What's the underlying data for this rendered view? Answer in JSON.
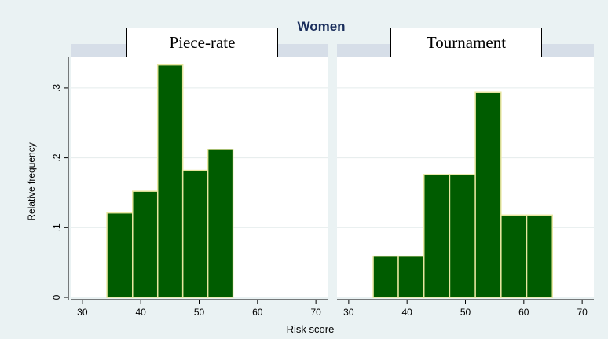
{
  "chart_data": {
    "type": "bar",
    "title": "Women",
    "xlabel": "Risk score",
    "ylabel": "Relative frequency",
    "xlim": [
      28,
      72
    ],
    "ylim": [
      0,
      0.345
    ],
    "x_ticks": [
      30,
      40,
      50,
      60,
      70
    ],
    "y_ticks": [
      0,
      0.1,
      0.2,
      0.3
    ],
    "y_tick_labels": [
      "0",
      ".1",
      ".2",
      ".3"
    ],
    "bar_color": "#005c00",
    "bar_edge_color": "#e8e6a0",
    "panels": [
      {
        "name": "Piece-rate",
        "bins": [
          {
            "x0": 34.2,
            "x1": 38.6,
            "value": 0.121
          },
          {
            "x0": 38.6,
            "x1": 42.9,
            "value": 0.152
          },
          {
            "x0": 42.9,
            "x1": 47.2,
            "value": 0.333
          },
          {
            "x0": 47.2,
            "x1": 51.5,
            "value": 0.182
          },
          {
            "x0": 51.5,
            "x1": 55.8,
            "value": 0.212
          }
        ]
      },
      {
        "name": "Tournament",
        "bins": [
          {
            "x0": 34.2,
            "x1": 38.5,
            "value": 0.059
          },
          {
            "x0": 38.5,
            "x1": 42.9,
            "value": 0.059
          },
          {
            "x0": 42.9,
            "x1": 47.3,
            "value": 0.176
          },
          {
            "x0": 47.3,
            "x1": 51.7,
            "value": 0.176
          },
          {
            "x0": 51.7,
            "x1": 56.1,
            "value": 0.294
          },
          {
            "x0": 56.1,
            "x1": 60.5,
            "value": 0.118
          },
          {
            "x0": 60.5,
            "x1": 64.9,
            "value": 0.118
          }
        ]
      }
    ]
  }
}
